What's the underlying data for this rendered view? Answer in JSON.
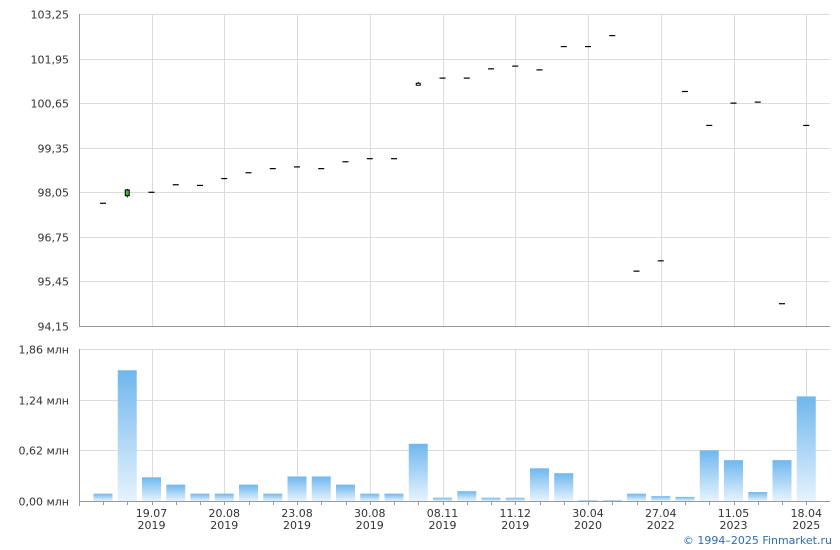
{
  "chart_data": [
    {
      "type": "ohlc",
      "ylim": [
        94.15,
        103.25
      ],
      "y_ticks": [
        "103,25",
        "101,95",
        "100,65",
        "99,35",
        "98,05",
        "96,75",
        "95,45",
        "94,15"
      ],
      "y_tick_values": [
        103.25,
        101.95,
        100.65,
        99.35,
        98.05,
        96.75,
        95.45,
        94.15
      ],
      "series": [
        {
          "values": [
            {
              "o": 97.73,
              "h": 97.73,
              "l": 97.73,
              "c": 97.73
            },
            {
              "o": 97.95,
              "h": 98.15,
              "l": 97.9,
              "c": 98.12
            },
            {
              "o": 98.05,
              "h": 98.05,
              "l": 98.05,
              "c": 98.05
            },
            {
              "o": 98.27,
              "h": 98.27,
              "l": 98.27,
              "c": 98.27
            },
            {
              "o": 98.25,
              "h": 98.25,
              "l": 98.25,
              "c": 98.25
            },
            {
              "o": 98.45,
              "h": 98.45,
              "l": 98.45,
              "c": 98.45
            },
            {
              "o": 98.62,
              "h": 98.62,
              "l": 98.62,
              "c": 98.62
            },
            {
              "o": 98.74,
              "h": 98.74,
              "l": 98.74,
              "c": 98.74
            },
            {
              "o": 98.79,
              "h": 98.79,
              "l": 98.79,
              "c": 98.79
            },
            {
              "o": 98.74,
              "h": 98.74,
              "l": 98.74,
              "c": 98.74
            },
            {
              "o": 98.94,
              "h": 98.94,
              "l": 98.94,
              "c": 98.94
            },
            {
              "o": 99.03,
              "h": 99.03,
              "l": 99.03,
              "c": 99.03
            },
            {
              "o": 99.03,
              "h": 99.03,
              "l": 99.03,
              "c": 99.03
            },
            {
              "o": 101.23,
              "h": 101.27,
              "l": 101.2,
              "c": 101.22
            },
            {
              "o": 101.38,
              "h": 101.38,
              "l": 101.38,
              "c": 101.38
            },
            {
              "o": 101.38,
              "h": 101.38,
              "l": 101.38,
              "c": 101.38
            },
            {
              "o": 101.65,
              "h": 101.65,
              "l": 101.65,
              "c": 101.65
            },
            {
              "o": 101.73,
              "h": 101.73,
              "l": 101.73,
              "c": 101.73
            },
            {
              "o": 101.62,
              "h": 101.62,
              "l": 101.62,
              "c": 101.62
            },
            {
              "o": 102.3,
              "h": 102.3,
              "l": 102.3,
              "c": 102.3
            },
            {
              "o": 102.3,
              "h": 102.3,
              "l": 102.3,
              "c": 102.3
            },
            {
              "o": 102.62,
              "h": 102.62,
              "l": 102.62,
              "c": 102.62
            },
            {
              "o": 95.75,
              "h": 95.75,
              "l": 95.75,
              "c": 95.75
            },
            {
              "o": 96.05,
              "h": 96.05,
              "l": 96.05,
              "c": 96.05
            },
            {
              "o": 100.99,
              "h": 100.99,
              "l": 100.99,
              "c": 100.99
            },
            {
              "o": 100.0,
              "h": 100.0,
              "l": 100.0,
              "c": 100.0
            },
            {
              "o": 100.65,
              "h": 100.65,
              "l": 100.65,
              "c": 100.65
            },
            {
              "o": 100.68,
              "h": 100.68,
              "l": 100.68,
              "c": 100.68
            },
            {
              "o": 94.8,
              "h": 94.8,
              "l": 94.8,
              "c": 94.8
            },
            {
              "o": 100.0,
              "h": 100.0,
              "l": 100.0,
              "c": 100.0
            }
          ]
        }
      ]
    },
    {
      "type": "bar",
      "ylim": [
        0,
        1.86
      ],
      "y_ticks": [
        "1,86 млн",
        "1,24 млн",
        "0,62 млн",
        "0,00 млн"
      ],
      "y_tick_values": [
        1.86,
        1.24,
        0.62,
        0.0
      ],
      "values": [
        0.09,
        1.6,
        0.29,
        0.2,
        0.09,
        0.09,
        0.2,
        0.09,
        0.3,
        0.3,
        0.2,
        0.09,
        0.09,
        0.7,
        0.04,
        0.12,
        0.04,
        0.04,
        0.4,
        0.34,
        0.01,
        0.01,
        0.09,
        0.06,
        0.05,
        0.62,
        0.5,
        0.11,
        0.5,
        1.28
      ],
      "x_tick_labels": [
        {
          "date": "19.07",
          "year": "2019"
        },
        {
          "date": "20.08",
          "year": "2019"
        },
        {
          "date": "23.08",
          "year": "2019"
        },
        {
          "date": "30.08",
          "year": "2019"
        },
        {
          "date": "08.11",
          "year": "2019"
        },
        {
          "date": "11.12",
          "year": "2019"
        },
        {
          "date": "30.04",
          "year": "2020"
        },
        {
          "date": "27.04",
          "year": "2022"
        },
        {
          "date": "11.05",
          "year": "2023"
        },
        {
          "date": "18.04",
          "year": "2025"
        }
      ]
    }
  ],
  "credit": "© 1994–2025 Finmarket.ru",
  "colors": {
    "candle_up": "#3cb43c",
    "mark": "#000000",
    "bar_top": "#6fb7ee",
    "bar_bottom": "#e6f3fd",
    "grid": "#dcdcdc"
  }
}
